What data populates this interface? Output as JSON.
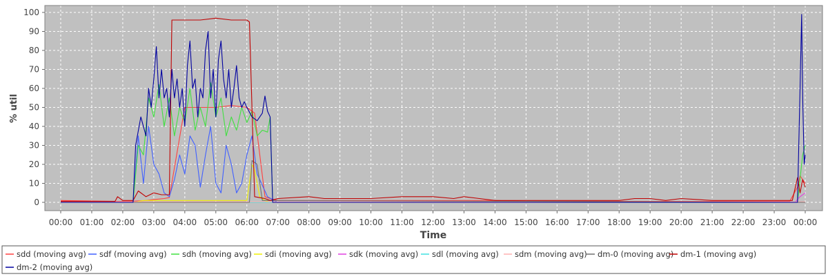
{
  "chart_data": {
    "type": "line",
    "title": "",
    "xlabel": "Time",
    "ylabel": "% util",
    "ylim": [
      0,
      100
    ],
    "xlim": [
      "00:00",
      "24:00"
    ],
    "grid": true,
    "legend_position": "bottom",
    "y_ticks": [
      "0",
      "10",
      "20",
      "30",
      "40",
      "50",
      "60",
      "70",
      "80",
      "90",
      "100"
    ],
    "x_ticks": [
      "00:00",
      "01:00",
      "02:00",
      "03:00",
      "04:00",
      "05:00",
      "06:00",
      "07:00",
      "08:00",
      "09:00",
      "10:00",
      "11:00",
      "12:00",
      "13:00",
      "14:00",
      "15:00",
      "16:00",
      "17:00",
      "18:00",
      "19:00",
      "20:00",
      "21:00",
      "22:00",
      "23:00",
      "00:00"
    ],
    "plot_background": "#c0c0c0",
    "series": [
      {
        "name": "sdd (moving avg)",
        "color": "#ff4040",
        "x": [
          "00:00",
          "01:50",
          "02:15",
          "02:45",
          "03:00",
          "03:20",
          "03:30",
          "04:00",
          "04:30",
          "05:00",
          "05:30",
          "06:00",
          "06:15",
          "06:35",
          "06:45",
          "07:00",
          "08:00",
          "09:00",
          "10:00",
          "11:00",
          "12:00",
          "13:00",
          "14:00",
          "15:00",
          "16:00",
          "17:00",
          "18:00",
          "19:00",
          "20:00",
          "21:00",
          "22:00",
          "23:00",
          "23:30",
          "23:45",
          "23:50",
          "24:00"
        ],
        "values": [
          1,
          0.5,
          0.5,
          1,
          1.5,
          2,
          2.5,
          50,
          50,
          50,
          51,
          50,
          47,
          3,
          2,
          1,
          1,
          1,
          1,
          1,
          1,
          1,
          1,
          0.5,
          0.5,
          0.5,
          0.5,
          0.5,
          0.5,
          0.5,
          0.5,
          0.5,
          0.5,
          8,
          14,
          10
        ]
      },
      {
        "name": "sdf (moving avg)",
        "color": "#4060ff",
        "x": [
          "00:00",
          "02:20",
          "02:30",
          "02:40",
          "02:50",
          "03:00",
          "03:10",
          "03:20",
          "03:30",
          "03:40",
          "03:50",
          "04:00",
          "04:10",
          "04:20",
          "04:30",
          "04:40",
          "04:50",
          "05:00",
          "05:10",
          "05:20",
          "05:30",
          "05:40",
          "05:50",
          "06:00",
          "06:10",
          "06:20",
          "06:40",
          "07:00",
          "24:00"
        ],
        "values": [
          0,
          0,
          35,
          10,
          40,
          20,
          15,
          5,
          3,
          12,
          25,
          15,
          35,
          30,
          8,
          25,
          40,
          10,
          5,
          30,
          20,
          5,
          10,
          25,
          35,
          15,
          3,
          0,
          0
        ]
      },
      {
        "name": "sdh (moving avg)",
        "color": "#40e040",
        "x": [
          "00:00",
          "02:20",
          "02:30",
          "02:40",
          "02:50",
          "03:00",
          "03:10",
          "03:20",
          "03:30",
          "03:40",
          "03:50",
          "04:00",
          "04:10",
          "04:20",
          "04:30",
          "04:40",
          "04:50",
          "05:00",
          "05:10",
          "05:20",
          "05:30",
          "05:40",
          "05:50",
          "06:00",
          "06:10",
          "06:20",
          "06:30",
          "06:40",
          "06:45",
          "06:50",
          "23:45",
          "23:55",
          "24:00"
        ],
        "values": [
          0,
          0,
          30,
          25,
          55,
          45,
          62,
          40,
          55,
          35,
          50,
          42,
          60,
          38,
          50,
          40,
          63,
          45,
          55,
          35,
          45,
          38,
          50,
          42,
          48,
          35,
          38,
          37,
          45,
          0,
          0,
          25,
          30
        ]
      },
      {
        "name": "sdi (moving avg)",
        "color": "#f0f000",
        "x": [
          "00:00",
          "02:20",
          "02:40",
          "03:00",
          "03:30",
          "04:00",
          "05:00",
          "06:00",
          "06:10",
          "06:15",
          "06:25",
          "06:35",
          "06:45",
          "24:00"
        ],
        "values": [
          0,
          0,
          1,
          1,
          1,
          1,
          1,
          1,
          20,
          17,
          3,
          1,
          0,
          0
        ]
      },
      {
        "name": "sdk (moving avg)",
        "color": "#e040e0",
        "x": [
          "00:00",
          "23:40",
          "23:50",
          "24:00"
        ],
        "values": [
          0,
          0,
          3,
          5
        ]
      },
      {
        "name": "sdl (moving avg)",
        "color": "#40e0e0",
        "x": [
          "00:00",
          "24:00"
        ],
        "values": [
          0,
          0
        ]
      },
      {
        "name": "sdm (moving avg)",
        "color": "#ffb0b0",
        "x": [
          "00:00",
          "24:00"
        ],
        "values": [
          0.3,
          0.3
        ]
      },
      {
        "name": "dm-0 (moving avg)",
        "color": "#707070",
        "x": [
          "00:00",
          "06:05",
          "06:10",
          "06:20",
          "06:30",
          "24:00"
        ],
        "values": [
          0,
          0,
          22,
          20,
          1,
          0
        ]
      },
      {
        "name": "dm-1 (moving avg)",
        "color": "#c00000",
        "x": [
          "00:00",
          "01:45",
          "01:50",
          "02:00",
          "02:20",
          "02:30",
          "02:45",
          "03:00",
          "03:15",
          "03:30",
          "03:35",
          "04:00",
          "04:30",
          "05:00",
          "05:30",
          "06:00",
          "06:05",
          "06:15",
          "06:35",
          "06:45",
          "07:00",
          "08:00",
          "08:30",
          "09:00",
          "10:00",
          "11:00",
          "12:00",
          "12:40",
          "13:00",
          "13:30",
          "14:00",
          "14:30",
          "15:00",
          "16:00",
          "17:00",
          "18:00",
          "18:30",
          "19:00",
          "19:30",
          "20:00",
          "21:00",
          "22:00",
          "23:00",
          "23:35",
          "23:45",
          "23:50",
          "23:55",
          "24:00"
        ],
        "values": [
          0.5,
          0.5,
          3,
          1,
          1,
          6,
          3,
          5,
          4,
          4,
          96,
          96,
          96,
          97,
          96,
          96,
          95,
          3,
          2,
          1,
          2,
          3,
          2,
          2,
          2,
          3,
          3,
          2,
          3,
          2,
          1,
          1,
          1,
          1,
          1,
          1,
          2,
          2,
          1,
          2,
          1,
          1,
          1,
          1,
          13,
          5,
          12,
          8
        ]
      },
      {
        "name": "dm-2 (moving avg)",
        "color": "#0000a0",
        "x": [
          "00:00",
          "02:20",
          "02:25",
          "02:35",
          "02:45",
          "02:50",
          "02:55",
          "03:00",
          "03:05",
          "03:10",
          "03:15",
          "03:20",
          "03:25",
          "03:30",
          "03:35",
          "03:40",
          "03:45",
          "03:50",
          "03:55",
          "04:00",
          "04:05",
          "04:10",
          "04:15",
          "04:20",
          "04:25",
          "04:30",
          "04:35",
          "04:40",
          "04:45",
          "04:50",
          "04:55",
          "05:00",
          "05:05",
          "05:10",
          "05:15",
          "05:20",
          "05:25",
          "05:30",
          "05:35",
          "05:40",
          "05:45",
          "05:50",
          "05:55",
          "06:00",
          "06:10",
          "06:20",
          "06:30",
          "06:35",
          "06:40",
          "06:45",
          "06:50",
          "23:40",
          "23:45",
          "23:50",
          "23:53",
          "23:55",
          "23:58",
          "24:00"
        ],
        "values": [
          0,
          0,
          30,
          45,
          35,
          60,
          50,
          65,
          82,
          55,
          70,
          55,
          60,
          45,
          70,
          55,
          65,
          50,
          60,
          40,
          72,
          85,
          60,
          65,
          45,
          60,
          55,
          80,
          90,
          55,
          70,
          45,
          75,
          85,
          65,
          55,
          70,
          50,
          60,
          72,
          55,
          50,
          53,
          50,
          45,
          43,
          47,
          56,
          48,
          45,
          0,
          0,
          0,
          60,
          99,
          55,
          20,
          25
        ]
      }
    ]
  }
}
